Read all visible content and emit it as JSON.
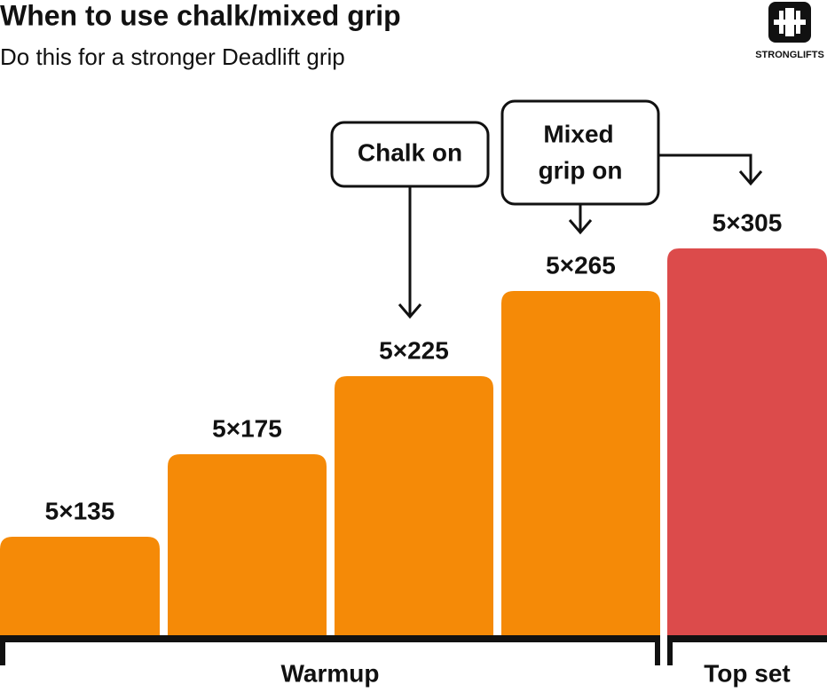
{
  "header": {
    "title": "When to use chalk/mixed grip",
    "subtitle": "Do this for a stronger Deadlift grip",
    "logo": "STRONGLIFTS"
  },
  "bars": [
    {
      "label": "5×135"
    },
    {
      "label": "5×175"
    },
    {
      "label": "5×225"
    },
    {
      "label": "5×265"
    },
    {
      "label": "5×305"
    }
  ],
  "callouts": [
    {
      "lines": [
        "Chalk on"
      ]
    },
    {
      "lines": [
        "Mixed",
        "grip on"
      ]
    }
  ],
  "groups": [
    {
      "label": "Warmup"
    },
    {
      "label": "Top set"
    }
  ]
}
